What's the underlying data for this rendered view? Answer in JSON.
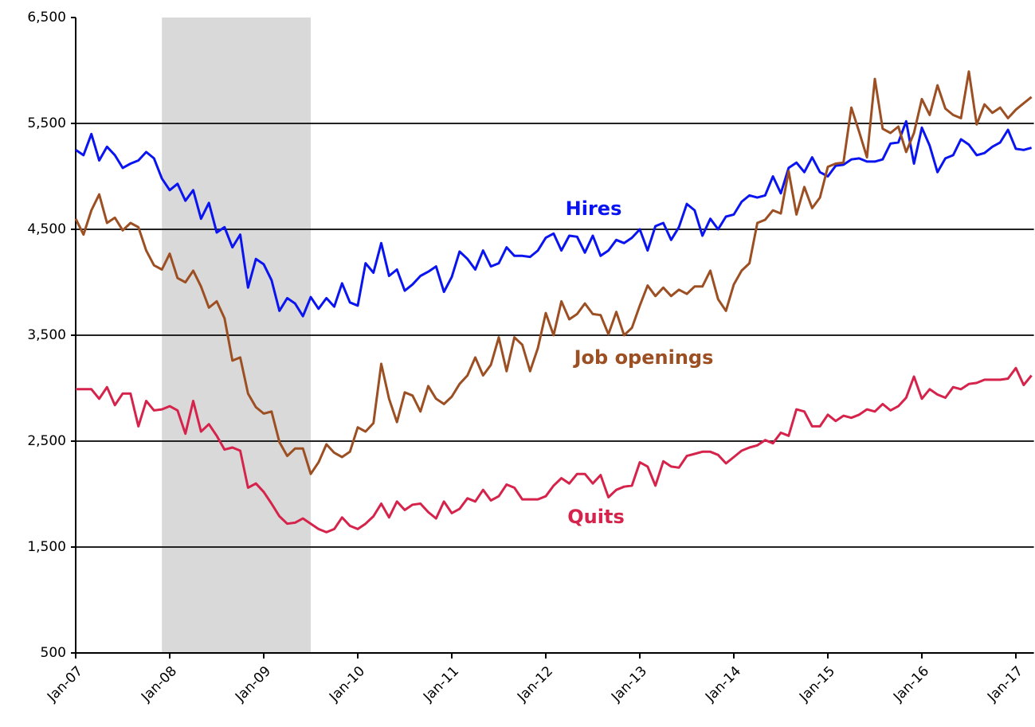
{
  "chart_data": {
    "type": "line",
    "categories": [
      "Jan-07",
      null,
      null,
      null,
      null,
      null,
      null,
      null,
      null,
      null,
      null,
      null,
      "Jan-08",
      null,
      null,
      null,
      null,
      null,
      null,
      null,
      null,
      null,
      null,
      null,
      "Jan-09",
      null,
      null,
      null,
      null,
      null,
      null,
      null,
      null,
      null,
      null,
      null,
      "Jan-10",
      null,
      null,
      null,
      null,
      null,
      null,
      null,
      null,
      null,
      null,
      null,
      "Jan-11",
      null,
      null,
      null,
      null,
      null,
      null,
      null,
      null,
      null,
      null,
      null,
      "Jan-12",
      null,
      null,
      null,
      null,
      null,
      null,
      null,
      null,
      null,
      null,
      null,
      "Jan-13",
      null,
      null,
      null,
      null,
      null,
      null,
      null,
      null,
      null,
      null,
      null,
      "Jan-14",
      null,
      null,
      null,
      null,
      null,
      null,
      null,
      null,
      null,
      null,
      null,
      "Jan-15",
      null,
      null,
      null,
      null,
      null,
      null,
      null,
      null,
      null,
      null,
      null,
      "Jan-16",
      null,
      null,
      null,
      null,
      null,
      null,
      null,
      null,
      null,
      null,
      null,
      "Jan-17",
      null,
      null
    ],
    "shaded": [
      11,
      30
    ],
    "ylim": [
      500,
      6500
    ],
    "yticks": [
      500,
      {
        "value": 1500,
        "label": "1,500"
      },
      {
        "value": 2500,
        "label": "2,500"
      },
      {
        "value": 3500,
        "label": "3,500"
      },
      {
        "value": 4500,
        "label": "4,500"
      },
      {
        "value": 5500,
        "label": "5,500"
      },
      {
        "value": 6500,
        "label": "6,500"
      }
    ],
    "grid": true,
    "series": [
      {
        "name": "Hires",
        "color": "#0a14f0",
        "values": [
          5250,
          5200,
          5400,
          5150,
          5280,
          5200,
          5080,
          5120,
          5150,
          5230,
          5170,
          4980,
          4870,
          4930,
          4770,
          4870,
          4600,
          4750,
          4470,
          4520,
          4330,
          4450,
          3950,
          4220,
          4170,
          4020,
          3730,
          3850,
          3800,
          3680,
          3860,
          3750,
          3850,
          3770,
          3990,
          3810,
          3780,
          4180,
          4090,
          4370,
          4060,
          4120,
          3920,
          3980,
          4060,
          4100,
          4150,
          3910,
          4050,
          4290,
          4220,
          4120,
          4300,
          4150,
          4180,
          4330,
          4250,
          4250,
          4240,
          4300,
          4420,
          4460,
          4300,
          4440,
          4430,
          4280,
          4440,
          4250,
          4300,
          4400,
          4370,
          4420,
          4500,
          4300,
          4530,
          4560,
          4400,
          4520,
          4740,
          4680,
          4440,
          4600,
          4500,
          4620,
          4640,
          4760,
          4820,
          4800,
          4820,
          5000,
          4840,
          5080,
          5130,
          5040,
          5180,
          5040,
          5000,
          5100,
          5110,
          5160,
          5170,
          5140,
          5140,
          5160,
          5310,
          5320,
          5520,
          5120,
          5460,
          5290,
          5040,
          5170,
          5200,
          5350,
          5300,
          5200,
          5220,
          5280,
          5320,
          5440,
          5260,
          5250,
          5270
        ]
      },
      {
        "name": "Job openings",
        "color": "#9c4f22",
        "values": [
          4600,
          4450,
          4680,
          4830,
          4560,
          4610,
          4490,
          4560,
          4520,
          4300,
          4160,
          4120,
          4270,
          4040,
          4000,
          4110,
          3960,
          3760,
          3820,
          3660,
          3260,
          3290,
          2950,
          2820,
          2760,
          2780,
          2490,
          2360,
          2430,
          2430,
          2190,
          2300,
          2470,
          2390,
          2350,
          2400,
          2630,
          2590,
          2670,
          3230,
          2900,
          2680,
          2960,
          2930,
          2780,
          3020,
          2900,
          2850,
          2920,
          3040,
          3120,
          3290,
          3120,
          3220,
          3480,
          3160,
          3480,
          3410,
          3160,
          3380,
          3710,
          3500,
          3820,
          3650,
          3700,
          3800,
          3700,
          3690,
          3510,
          3720,
          3500,
          3570,
          3780,
          3970,
          3870,
          3950,
          3870,
          3930,
          3890,
          3960,
          3960,
          4110,
          3840,
          3730,
          3980,
          4110,
          4180,
          4560,
          4590,
          4680,
          4650,
          5050,
          4640,
          4900,
          4700,
          4800,
          5090,
          5120,
          5130,
          5650,
          5420,
          5180,
          5920,
          5450,
          5410,
          5470,
          5230,
          5410,
          5730,
          5580,
          5860,
          5640,
          5580,
          5550,
          5990,
          5490,
          5680,
          5600,
          5650,
          5550,
          5630,
          5690,
          5750
        ]
      },
      {
        "name": "Quits",
        "color": "#d5234b",
        "values": [
          2990,
          2990,
          2990,
          2900,
          3010,
          2840,
          2950,
          2950,
          2640,
          2880,
          2790,
          2800,
          2830,
          2790,
          2570,
          2880,
          2590,
          2660,
          2550,
          2420,
          2440,
          2410,
          2060,
          2100,
          2020,
          1910,
          1790,
          1720,
          1730,
          1770,
          1720,
          1670,
          1640,
          1670,
          1780,
          1700,
          1670,
          1720,
          1790,
          1910,
          1780,
          1930,
          1850,
          1900,
          1910,
          1830,
          1770,
          1930,
          1820,
          1860,
          1960,
          1930,
          2040,
          1940,
          1980,
          2090,
          2060,
          1950,
          1950,
          1950,
          1980,
          2080,
          2150,
          2100,
          2190,
          2190,
          2100,
          2180,
          1970,
          2040,
          2070,
          2080,
          2300,
          2260,
          2080,
          2310,
          2260,
          2250,
          2360,
          2380,
          2400,
          2400,
          2370,
          2290,
          2350,
          2410,
          2440,
          2460,
          2510,
          2480,
          2580,
          2550,
          2800,
          2780,
          2640,
          2640,
          2750,
          2690,
          2740,
          2720,
          2750,
          2800,
          2780,
          2850,
          2790,
          2830,
          2910,
          3110,
          2900,
          2990,
          2940,
          2910,
          3010,
          2990,
          3040,
          3050,
          3080,
          3080,
          3080,
          3090,
          3190,
          3030,
          3120
        ]
      }
    ]
  }
}
